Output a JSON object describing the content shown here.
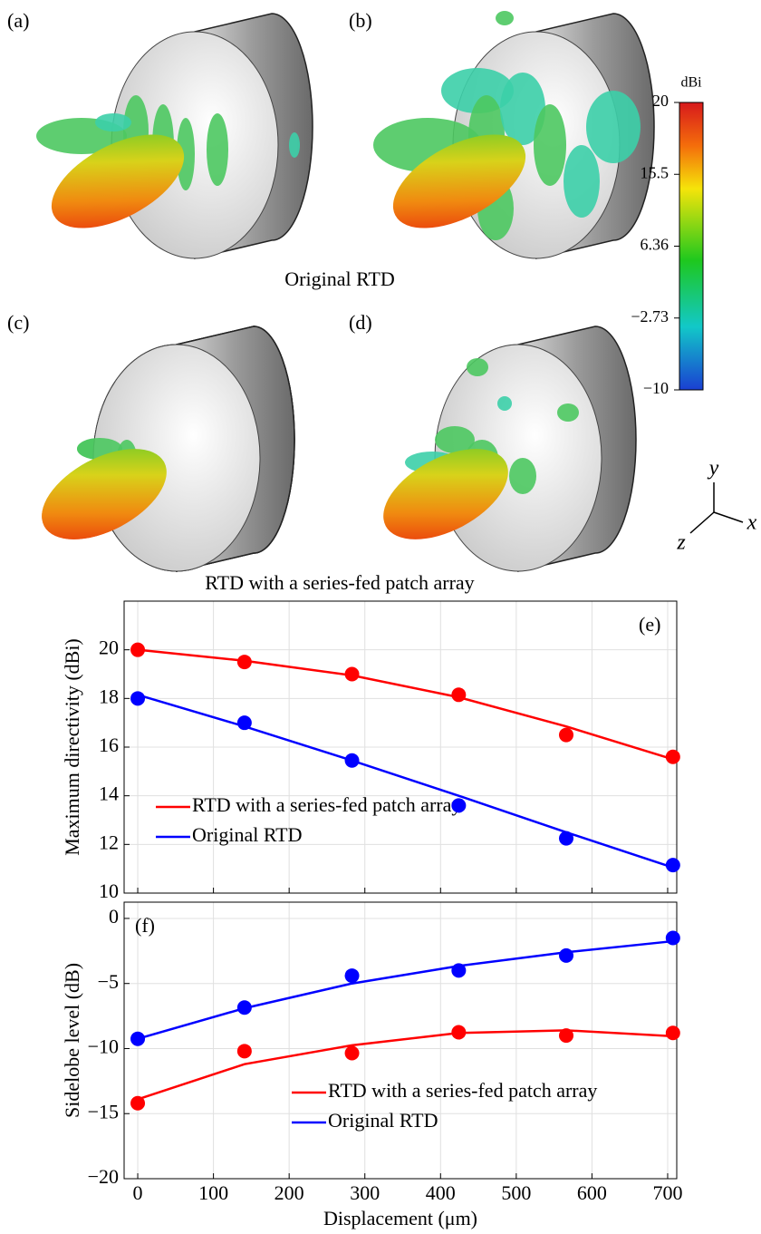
{
  "panels": {
    "labels": [
      "(a)",
      "(b)",
      "(c)",
      "(d)"
    ],
    "captions": [
      "Original RTD",
      "RTD with a series-fed patch array"
    ]
  },
  "colorbar": {
    "label": "dBi",
    "lim": [
      -10,
      20
    ],
    "ticks": [
      20,
      15.5,
      6.36,
      {
        "value": -2.73,
        "label": "−2.73"
      },
      {
        "value": -10,
        "label": "−10"
      }
    ]
  },
  "axes_indicator": {
    "x": "x",
    "y": "y",
    "z": "z"
  },
  "chart_data": [
    {
      "type": "line",
      "panel_label": "(e)",
      "y_label": "Maximum directivity (dBi)",
      "x": [
        0,
        141,
        283,
        424,
        566,
        707
      ],
      "xlim": [
        -18,
        712
      ],
      "xticks": [
        0,
        100,
        200,
        300,
        400,
        500,
        600,
        700
      ],
      "ylim": [
        10,
        22
      ],
      "yticks": [
        10,
        12,
        14,
        16,
        18,
        20
      ],
      "grid": true,
      "legend": "lower left",
      "series": [
        {
          "name": "RTD with a series-fed patch array",
          "color": "#ff0000",
          "values": [
            20,
            19.55,
            18.95,
            18.05,
            16.85,
            15.5
          ],
          "points": [
            20.0,
            19.5,
            19.0,
            18.15,
            16.5,
            15.6
          ]
        },
        {
          "name": "Original RTD",
          "color": "#0000ff",
          "values": [
            18.15,
            16.85,
            15.45,
            14.0,
            12.5,
            11.05
          ],
          "points": [
            18.0,
            17.0,
            15.45,
            13.6,
            12.25,
            11.15
          ]
        }
      ]
    },
    {
      "type": "line",
      "panel_label": "(f)",
      "y_label": "Sidelobe level (dB)",
      "x_label": "Displacement (μm)",
      "x": [
        0,
        141,
        283,
        424,
        566,
        707
      ],
      "xlim": [
        -18,
        712
      ],
      "xticks": [
        0,
        100,
        200,
        300,
        400,
        500,
        600,
        700
      ],
      "ylim": [
        -20,
        1.25
      ],
      "yticks": [
        0,
        {
          "value": -5,
          "label": "−5"
        },
        {
          "value": -10,
          "label": "−10"
        },
        {
          "value": -15,
          "label": "−15"
        },
        {
          "value": -20,
          "label": "−20"
        }
      ],
      "grid": true,
      "legend": "lower right",
      "series": [
        {
          "name": "RTD with a series-fed patch array",
          "color": "#ff0000",
          "values": [
            -13.9,
            -11.2,
            -9.75,
            -8.8,
            -8.6,
            -9.05
          ],
          "points": [
            -14.2,
            -10.2,
            -10.35,
            -8.75,
            -9.0,
            -8.8
          ]
        },
        {
          "name": "Original RTD",
          "color": "#0000ff",
          "values": [
            -9.25,
            -6.9,
            -5.0,
            -3.65,
            -2.6,
            -1.75
          ],
          "points": [
            -9.25,
            -6.85,
            -4.4,
            -4.0,
            -2.85,
            -1.5
          ]
        }
      ]
    }
  ]
}
